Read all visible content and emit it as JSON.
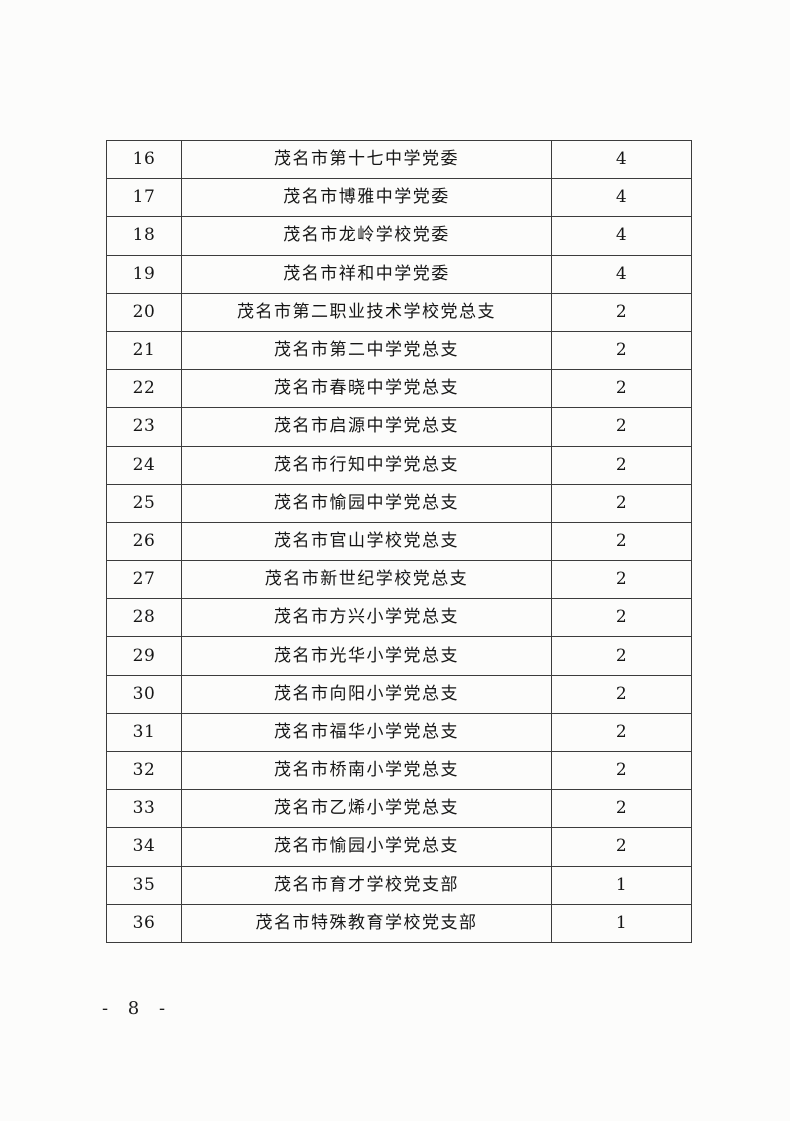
{
  "colors": {
    "background": "#fcfcfb",
    "border": "#3c3c3c",
    "text": "#161616"
  },
  "footer": {
    "page_label": "- 8 -"
  },
  "table": {
    "rows": [
      {
        "number": "16",
        "name": "茂名市第十七中学党委",
        "count": "4"
      },
      {
        "number": "17",
        "name": "茂名市博雅中学党委",
        "count": "4"
      },
      {
        "number": "18",
        "name": "茂名市龙岭学校党委",
        "count": "4"
      },
      {
        "number": "19",
        "name": "茂名市祥和中学党委",
        "count": "4"
      },
      {
        "number": "20",
        "name": "茂名市第二职业技术学校党总支",
        "count": "2"
      },
      {
        "number": "21",
        "name": "茂名市第二中学党总支",
        "count": "2"
      },
      {
        "number": "22",
        "name": "茂名市春晓中学党总支",
        "count": "2"
      },
      {
        "number": "23",
        "name": "茂名市启源中学党总支",
        "count": "2"
      },
      {
        "number": "24",
        "name": "茂名市行知中学党总支",
        "count": "2"
      },
      {
        "number": "25",
        "name": "茂名市愉园中学党总支",
        "count": "2"
      },
      {
        "number": "26",
        "name": "茂名市官山学校党总支",
        "count": "2"
      },
      {
        "number": "27",
        "name": "茂名市新世纪学校党总支",
        "count": "2"
      },
      {
        "number": "28",
        "name": "茂名市方兴小学党总支",
        "count": "2"
      },
      {
        "number": "29",
        "name": "茂名市光华小学党总支",
        "count": "2"
      },
      {
        "number": "30",
        "name": "茂名市向阳小学党总支",
        "count": "2"
      },
      {
        "number": "31",
        "name": "茂名市福华小学党总支",
        "count": "2"
      },
      {
        "number": "32",
        "name": "茂名市桥南小学党总支",
        "count": "2"
      },
      {
        "number": "33",
        "name": "茂名市乙烯小学党总支",
        "count": "2"
      },
      {
        "number": "34",
        "name": "茂名市愉园小学党总支",
        "count": "2"
      },
      {
        "number": "35",
        "name": "茂名市育才学校党支部",
        "count": "1"
      },
      {
        "number": "36",
        "name": "茂名市特殊教育学校党支部",
        "count": "1"
      }
    ]
  }
}
